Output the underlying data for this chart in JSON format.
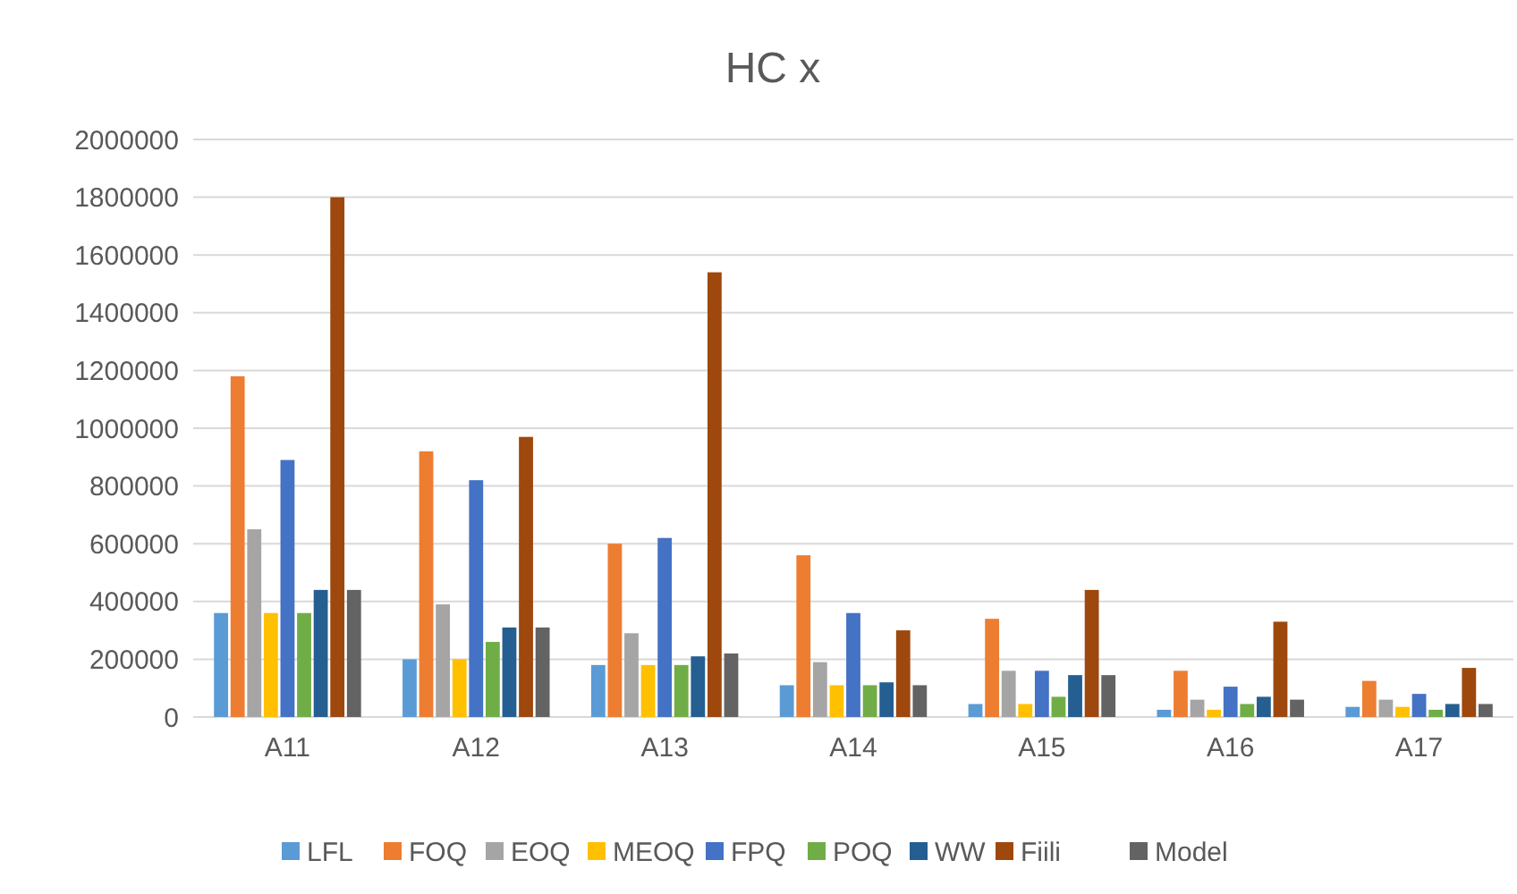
{
  "chart_data": {
    "type": "bar",
    "title": "HC x",
    "categories": [
      "A11",
      "A12",
      "A13",
      "A14",
      "A15",
      "A16",
      "A17"
    ],
    "series": [
      {
        "name": "LFL",
        "color": "#5b9bd5",
        "values": [
          360000,
          200000,
          180000,
          110000,
          45000,
          25000,
          35000
        ]
      },
      {
        "name": "FOQ",
        "color": "#ed7d31",
        "values": [
          1180000,
          920000,
          600000,
          560000,
          340000,
          160000,
          125000
        ]
      },
      {
        "name": "EOQ",
        "color": "#a5a5a5",
        "values": [
          650000,
          390000,
          290000,
          190000,
          160000,
          60000,
          60000
        ]
      },
      {
        "name": "MEOQ",
        "color": "#ffc000",
        "values": [
          360000,
          200000,
          180000,
          110000,
          45000,
          25000,
          35000
        ]
      },
      {
        "name": "FPQ",
        "color": "#4472c4",
        "values": [
          890000,
          820000,
          620000,
          360000,
          160000,
          105000,
          80000
        ]
      },
      {
        "name": "POQ",
        "color": "#70ad47",
        "values": [
          360000,
          260000,
          180000,
          110000,
          70000,
          45000,
          25000
        ]
      },
      {
        "name": "WW",
        "color": "#255e91",
        "values": [
          440000,
          310000,
          210000,
          120000,
          145000,
          70000,
          45000
        ]
      },
      {
        "name": "Fiili",
        "color": "#9e480e",
        "values": [
          1800000,
          970000,
          1540000,
          300000,
          440000,
          330000,
          170000
        ]
      },
      {
        "name": "Model",
        "color": "#636363",
        "values": [
          440000,
          310000,
          220000,
          110000,
          145000,
          60000,
          45000
        ]
      }
    ],
    "ylim": [
      0,
      2000000
    ],
    "yticks": [
      0,
      200000,
      400000,
      600000,
      800000,
      1000000,
      1200000,
      1400000,
      1600000,
      1800000,
      2000000
    ],
    "grid": "y",
    "legend": "bottom"
  }
}
